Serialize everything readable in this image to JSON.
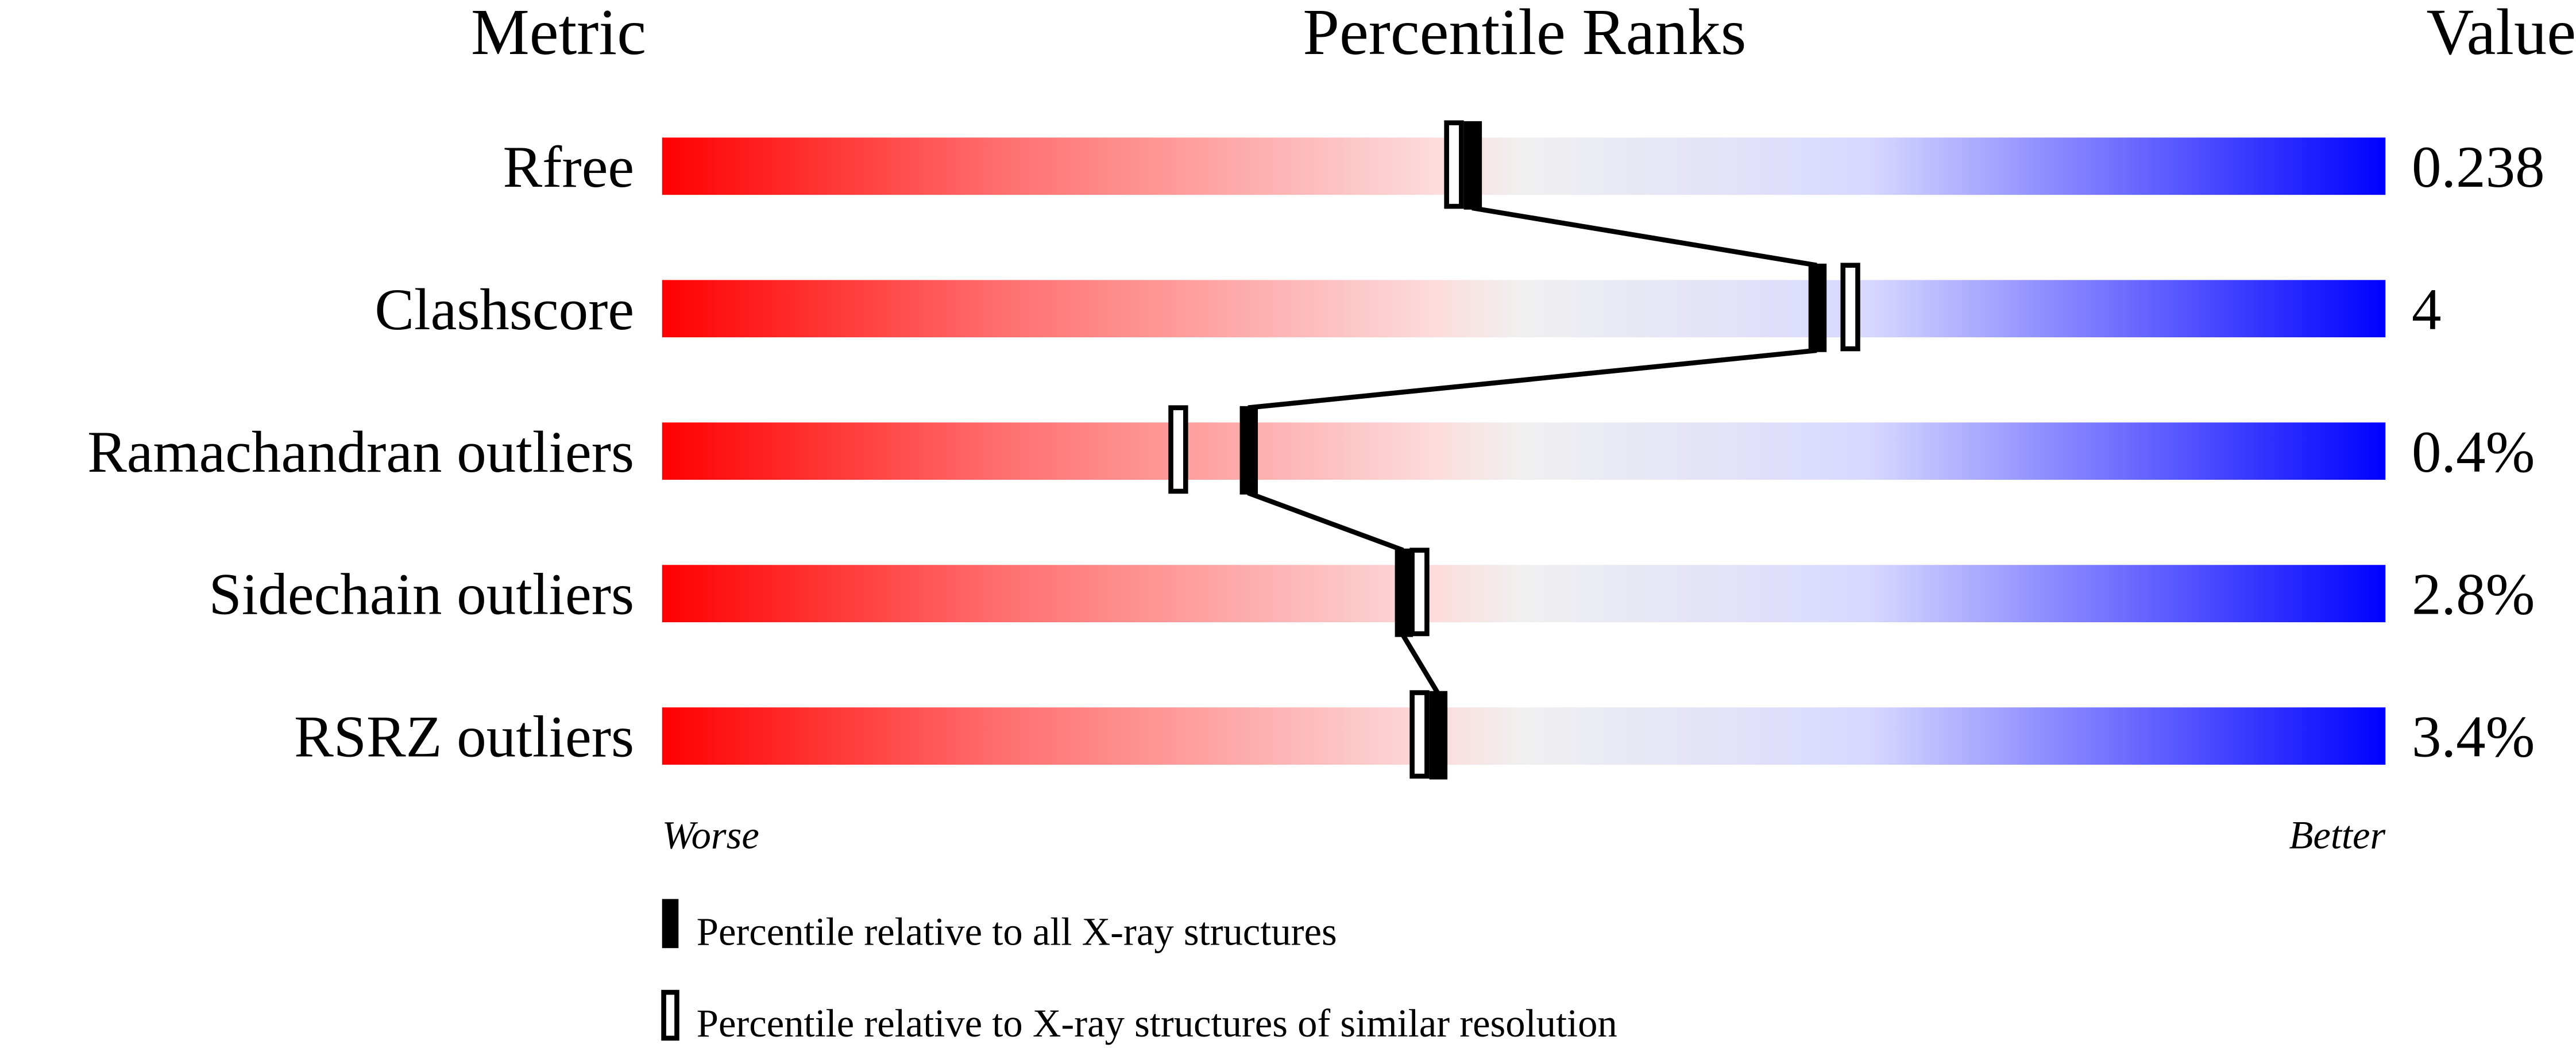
{
  "chart_data": {
    "type": "percentile-bar",
    "headers": {
      "metric": "Metric",
      "ranks": "Percentile Ranks",
      "value": "Value"
    },
    "xlim": [
      0,
      100
    ],
    "metrics": [
      {
        "name": "Rfree",
        "value": "0.238",
        "percentile_all": 47,
        "percentile_similar": 46
      },
      {
        "name": "Clashscore",
        "value": "4",
        "percentile_all": 67,
        "percentile_similar": 69
      },
      {
        "name": "Ramachandran outliers",
        "value": "0.4%",
        "percentile_all": 34,
        "percentile_similar": 30
      },
      {
        "name": "Sidechain outliers",
        "value": "2.8%",
        "percentile_all": 43,
        "percentile_similar": 44
      },
      {
        "name": "RSRZ outliers",
        "value": "3.4%",
        "percentile_all": 45,
        "percentile_similar": 44
      }
    ],
    "axis_labels": {
      "left": "Worse",
      "right": "Better"
    },
    "legend": {
      "all": "Percentile relative to all X-ray structures",
      "similar": "Percentile relative to X-ray structures of similar resolution"
    },
    "colors": {
      "worse": "#ff0000",
      "middle": "#f0f0f0",
      "better": "#0000ff",
      "marker": "#000000"
    }
  }
}
